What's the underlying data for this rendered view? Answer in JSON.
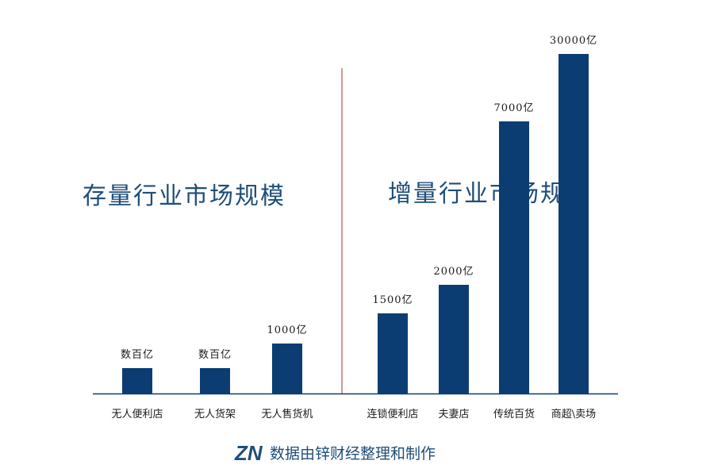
{
  "chart_data": {
    "type": "bar",
    "colors": {
      "bar": "#0b3d72",
      "divider": "#a83232",
      "axis": "#0b3d72",
      "section_label": "#1f4e79"
    },
    "sections": [
      {
        "label": "存量行业市场规模",
        "categories": [
          "无人便利店",
          "无人货架",
          "无人售货机"
        ]
      },
      {
        "label": "增量行业市场规模",
        "categories": [
          "连锁便利店",
          "夫妻店",
          "传统百货",
          "商超\\卖场"
        ]
      }
    ],
    "categories": [
      "无人便利店",
      "无人货架",
      "无人售货机",
      "连锁便利店",
      "夫妻店",
      "传统百货",
      "商超\\卖场"
    ],
    "values": [
      400,
      400,
      1000,
      1500,
      2000,
      7000,
      30000
    ],
    "value_labels": [
      "数百亿",
      "数百亿",
      "1000亿",
      "1500亿",
      "2000亿",
      "7000亿",
      "30000亿"
    ],
    "value_scale": "non-linear (bars not drawn to scale)",
    "xlabel": "",
    "ylabel": ""
  },
  "source": {
    "logo_text": "ZN",
    "text": "数据由锌财经整理和制作"
  }
}
